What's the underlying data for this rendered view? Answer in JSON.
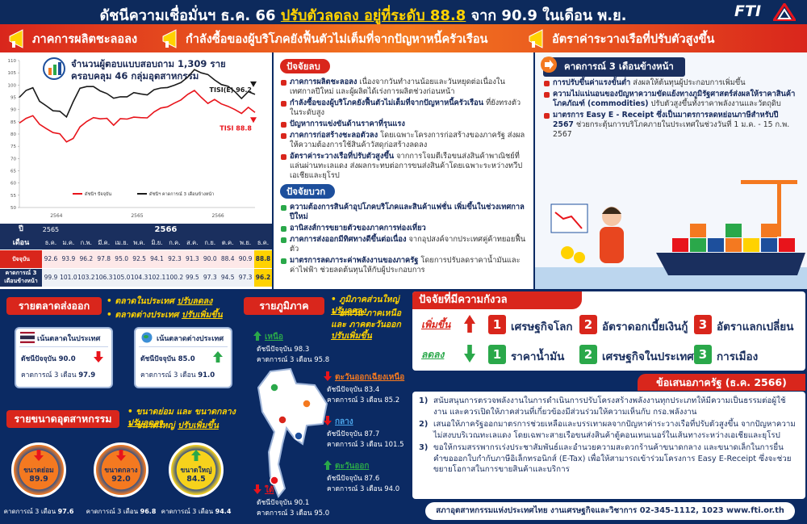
{
  "header": {
    "title": "ดัชนีความเชื่อมั่นฯ ธ.ค. 66",
    "title_highlight": "ปรับตัวลดลง อยู่ที่ระดับ 88.8",
    "title_end": "จาก 90.9 ในเดือน พ.ย.",
    "logo": "FTI"
  },
  "banner": [
    "ภาคการผลิตชะลอลง",
    "กำลังซื้อของผู้บริโภคยังฟื้นตัวไม่เต็มที่จากปัญหาหนี้ครัวเรือน",
    "อัตราค่าระวางเรือที่ปรับตัวสูงขึ้น"
  ],
  "survey_note": [
    "จำนวนผู้ตอบแบบสอบถาม 1,309 ราย",
    "ครอบคลุม 46 กลุ่มอุตสาหกรรม"
  ],
  "trend_chart": {
    "type": "line",
    "categories": [
      null,
      null,
      null,
      null,
      null,
      null,
      null,
      null,
      null,
      null,
      null,
      null,
      null,
      null,
      null,
      null,
      null,
      null,
      null,
      null,
      null,
      null,
      null,
      null,
      null,
      null,
      null,
      null,
      null,
      null,
      null,
      null,
      null,
      null,
      null,
      null
    ],
    "x_group_labels": [
      "2564",
      "2565",
      "2566"
    ],
    "series": [
      {
        "name": "ดัชนีฯ ปัจจุบัน",
        "color": "#e8141b",
        "values": [
          84.5,
          86.4,
          87.5,
          84.0,
          82.2,
          80.6,
          80.1,
          76.8,
          78.2,
          82.9,
          85.1,
          86.7,
          86.2,
          86.4,
          83.6,
          86.3,
          86.1,
          86.9,
          86.7,
          86.6,
          89.0,
          90.6,
          91.1,
          92.6,
          93.9,
          96.2,
          97.8,
          95.0,
          92.5,
          94.1,
          92.3,
          91.3,
          90.0,
          88.4,
          90.9,
          88.8
        ]
      },
      {
        "name": "ดัชนีฯ คาดการณ์ 3 เดือนข้างหน้า",
        "color": "#1a1a1a",
        "values": [
          95.0,
          97.8,
          98.9,
          93.4,
          91.5,
          89.5,
          89.3,
          87.0,
          93.2,
          98.7,
          99.4,
          99.4,
          97.6,
          96.5,
          94.6,
          95.2,
          95.2,
          96.9,
          96.4,
          96.0,
          98.1,
          98.8,
          99.0,
          99.9,
          101.0,
          103.2,
          106.3,
          105.0,
          104.3,
          102.1,
          100.2,
          99.5,
          97.3,
          94.5,
          97.3,
          96.2
        ]
      }
    ],
    "end_labels": [
      "TISI 88.8",
      "TISI(E) 96.2"
    ],
    "ylim": [
      50,
      110
    ],
    "yticks": [
      50,
      55,
      60,
      65,
      70,
      75,
      80,
      85,
      90,
      95,
      100,
      105,
      110
    ],
    "grid": false
  },
  "table": {
    "year_header": "ปี",
    "month_header": "เดือน",
    "years": [
      "2565",
      "2566"
    ],
    "months": [
      "ธ.ค.",
      "ม.ค.",
      "ก.พ.",
      "มี.ค.",
      "เม.ย.",
      "พ.ค.",
      "มิ.ย.",
      "ก.ค.",
      "ส.ค.",
      "ก.ย.",
      "ต.ค.",
      "พ.ย.",
      "ธ.ค."
    ],
    "rows": [
      {
        "label": "ปัจจุบัน",
        "values": [
          "92.6",
          "93.9",
          "96.2",
          "97.8",
          "95.0",
          "92.5",
          "94.1",
          "92.3",
          "91.3",
          "90.0",
          "88.4",
          "90.9",
          "88.8"
        ]
      },
      {
        "label": "คาดการณ์ 3 เดือนข้างหน้า",
        "values": [
          "99.9",
          "101.0",
          "103.2",
          "106.3",
          "105.0",
          "104.3",
          "102.1",
          "100.2",
          "99.5",
          "97.3",
          "94.5",
          "97.3",
          "96.2"
        ]
      }
    ]
  },
  "negative": {
    "title": "ปัจจัยลบ",
    "items": [
      {
        "head": "ภาคการผลิตชะลอลง",
        "text": "เนื่องจากวันทำงานน้อยและวันหยุดต่อเนื่องในเทศกาลปีใหม่ และผู้ผลิตได้เร่งการผลิตช่วงก่อนหน้า"
      },
      {
        "head": "กำลังซื้อของผู้บริโภคยังฟื้นตัวไม่เต็มที่จากปัญหาหนี้ครัวเรือน",
        "text": "ที่ยังทรงตัวในระดับสูง"
      },
      {
        "head": "ปัญหาการแข่งขันด้านราคาที่รุนแรง"
      },
      {
        "head": "ภาคการก่อสร้างชะลอตัวลง",
        "text": "โดยเฉพาะโครงการก่อสร้างของภาครัฐ ส่งผลให้ความต้องการใช้สินค้าวัสดุก่อสร้างลดลง"
      },
      {
        "head": "อัตราค่าระวางเรือที่ปรับตัวสูงขึ้น",
        "text": "จากการโจมตีเรือขนส่งสินค้าพาณิชย์ที่แล่นผ่านทะเลแดง ส่งผลกระทบต่อการขนส่งสินค้าโดยเฉพาะระหว่างทวีปเอเชียและยุโรป"
      }
    ]
  },
  "positive": {
    "title": "ปัจจัยบวก",
    "items": [
      {
        "head": "ความต้องการสินค้าอุปโภคบริโภคและสินค้าแฟชั่น เพิ่มขึ้นในช่วงเทศกาลปีใหม่"
      },
      {
        "head": "อานิสงส์การขยายตัวของภาคการท่องเที่ยว"
      },
      {
        "head": "ภาคการส่งออกมีทิศทางดีขึ้นต่อเนื่อง",
        "text": "จากอุปสงค์จากประเทศคู่ค้าทยอยฟื้นตัว"
      },
      {
        "head": "มาตรการลดภาระค่าพลังงานของภาครัฐ",
        "text": "โดยการปรับลดราคาน้ำมันและค่าไฟฟ้า ช่วยลดต้นทุนให้กับผู้ประกอบการ"
      }
    ]
  },
  "outlook": {
    "title": "คาดการณ์ 3 เดือนข้างหน้า",
    "items": [
      {
        "head": "การปรับขึ้นค่าแรงขั้นต่ำ",
        "text": "ส่งผลให้ต้นทุนผู้ประกอบการเพิ่มขึ้น"
      },
      {
        "head": "ความไม่แน่นอนของปัญหาความขัดแย้งทางภูมิรัฐศาสตร์ส่งผลให้ราคาสินค้าโภคภัณฑ์ (commodities)",
        "text": "ปรับตัวสูงขึ้นทั้งราคาพลังงานและวัตถุดิบ"
      },
      {
        "head": "มาตรการ Easy E - Receipt ซึ่งเป็นมาตรการลดหย่อนภาษีสำหรับปี 2567",
        "text": "ช่วยกระตุ้นการบริโภคภายในประเทศในช่วงวันที่ 1 ม.ค. - 15 ก.พ. 2567"
      }
    ]
  },
  "export": {
    "title": "รายตลาดส่งออก",
    "notes": [
      {
        "text": "ตลาดในประเทศ",
        "trend": "ปรับลดลง"
      },
      {
        "text": "ตลาดต่างประเทศ",
        "trend": "ปรับเพิ่มขึ้น"
      }
    ],
    "markets": [
      {
        "name": "เน้นตลาดในประเทศ",
        "current_label": "ดัชนีปัจจุบัน",
        "current": "90.0",
        "forecast_label": "คาดการณ์ 3 เดือน",
        "forecast": "97.9"
      },
      {
        "name": "เน้นตลาดต่างประเทศ",
        "current_label": "ดัชนีปัจจุบัน",
        "current": "85.0",
        "forecast_label": "คาดการณ์ 3 เดือน",
        "forecast": "91.0"
      }
    ]
  },
  "size": {
    "title": "รายขนาดอุตสาหกรรม",
    "notes": [
      {
        "text": "ขนาดย่อม และ ขนาดกลาง",
        "trend": "ปรับลดลง"
      },
      {
        "text": "ขนาดใหญ่",
        "trend": "ปรับเพิ่มขึ้น"
      }
    ],
    "groups": [
      {
        "name": "ขนาดย่อม",
        "value": "89.9",
        "forecast_label": "คาดการณ์ 3 เดือน",
        "forecast": "97.6"
      },
      {
        "name": "ขนาดกลาง",
        "value": "92.0",
        "forecast_label": "คาดการณ์ 3 เดือน",
        "forecast": "96.8"
      },
      {
        "name": "ขนาดใหญ่",
        "value": "84.5",
        "forecast_label": "คาดการณ์ 3 เดือน",
        "forecast": "94.4"
      }
    ]
  },
  "region": {
    "title": "รายภูมิภาค",
    "notes": [
      {
        "text": "ภูมิภาคส่วนใหญ่",
        "trend": "ปรับลดลง"
      },
      {
        "text": "ยกเว้น ภาคเหนือ และ ภาคตะวันออก",
        "trend": "ปรับเพิ่มขึ้น"
      }
    ],
    "regions": [
      {
        "name": "เหนือ",
        "current_label": "ดัชนีปัจจุบัน",
        "current": "98.3",
        "forecast_label": "คาดการณ์ 3 เดือน",
        "forecast": "95.8"
      },
      {
        "name": "ตะวันออกเฉียงเหนือ",
        "current_label": "ดัชนีปัจจุบัน",
        "current": "83.4",
        "forecast_label": "คาดการณ์ 3 เดือน",
        "forecast": "85.2"
      },
      {
        "name": "กลาง",
        "current_label": "ดัชนีปัจจุบัน",
        "current": "87.7",
        "forecast_label": "คาดการณ์ 3 เดือน",
        "forecast": "101.5"
      },
      {
        "name": "ตะวันออก",
        "current_label": "ดัชนีปัจจุบัน",
        "current": "87.6",
        "forecast_label": "คาดการณ์ 3 เดือน",
        "forecast": "94.0"
      },
      {
        "name": "ใต้",
        "current_label": "ดัชนีปัจจุบัน",
        "current": "90.1",
        "forecast_label": "คาดการณ์ 3 เดือน",
        "forecast": "95.0"
      }
    ]
  },
  "concerns": {
    "title": "ปัจจัยที่มีความกังวล",
    "rows": [
      {
        "label": "เพิ่มขึ้น",
        "items": [
          {
            "rank": "1",
            "text": "เศรษฐกิจโลก"
          },
          {
            "rank": "2",
            "text": "อัตราดอกเบี้ยเงินกู้"
          },
          {
            "rank": "3",
            "text": "อัตราแลกเปลี่ยน"
          }
        ]
      },
      {
        "label": "ลดลง",
        "items": [
          {
            "rank": "1",
            "text": "ราคาน้ำมัน"
          },
          {
            "rank": "2",
            "text": "เศรษฐกิจในประเทศ"
          },
          {
            "rank": "3",
            "text": "การเมือง"
          }
        ]
      }
    ]
  },
  "proposals": {
    "title": "ข้อเสนอภาครัฐ",
    "period": "(ธ.ค. 2566)",
    "items": [
      {
        "num": "1)",
        "text": "สนับสนุนการตรวจพลังงานในการดำเนินการปรับโครงสร้างพลังงานทุกประเภทให้มีความเป็นธรรมต่อผู้ใช้งาน และควรเปิดให้ภาคส่วนที่เกี่ยวข้องมีส่วนร่วมให้ความเห็นกับ กรอ.พลังงาน"
      },
      {
        "num": "2)",
        "text": "เสนอให้ภาครัฐออกมาตรการช่วยเหลือและบรรเทาผลจากปัญหาค่าระวางเรือที่ปรับตัวสูงขึ้น จากปัญหาความไม่สงบบริเวณทะเลแดง โดยเฉพาะสายเรือขนส่งสินค้าตู้คอนเทนเนอร์ในเส้นทางระหว่างเอเชียและยุโรป"
      },
      {
        "num": "3)",
        "text": "ขอให้กรมสรรพากรเร่งประชาสัมพันธ์และอำนวยความสะดวกร้านค้าขนาดกลาง และขนาดเล็กในการยื่นคำขอออกใบกำกับภาษีอิเล็กทรอนิกส์ (E-Tax) เพื่อให้สามารถเข้าร่วมโครงการ Easy E-Receipt ซึ่งจะช่วยขยายโอกาสในการขายสินค้าและบริการ"
      }
    ]
  },
  "footer": {
    "org": "สภาอุตสาหกรรมแห่งประเทศไทย งานเศรษฐกิจและวิชาการ 02-345-1112, 1023",
    "url": "www.fti.or.th"
  }
}
